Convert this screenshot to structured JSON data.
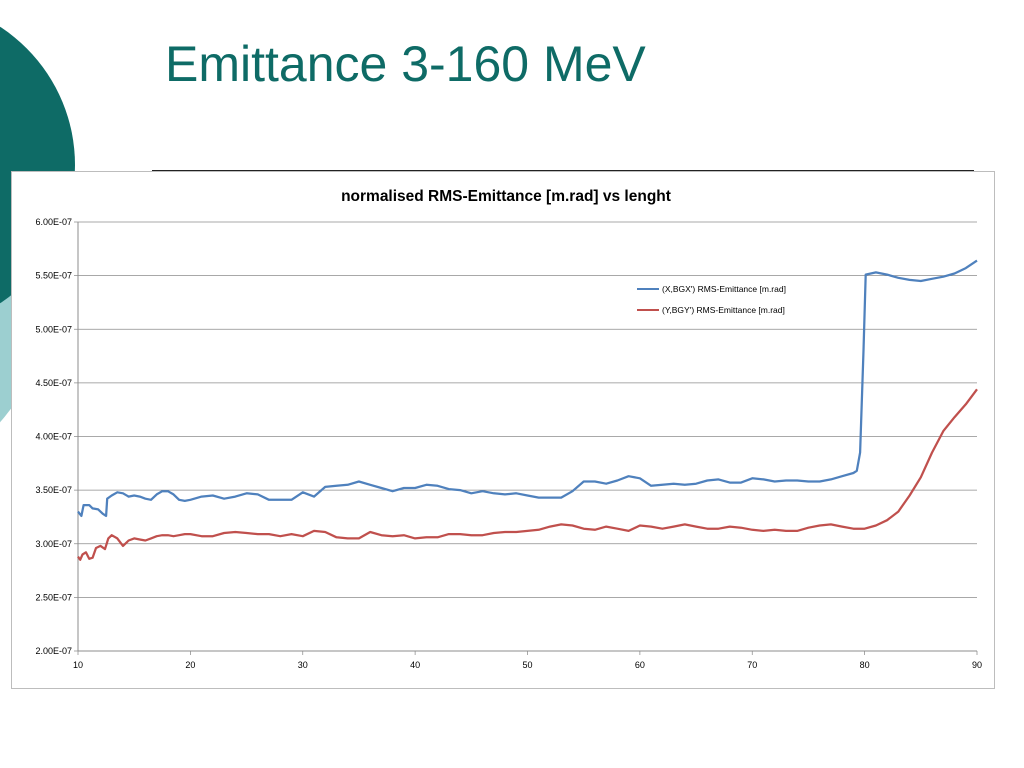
{
  "slide": {
    "title": "Emittance 3-160 MeV",
    "title_color": "#0e6b66",
    "accent_dark": "#0e6b66",
    "accent_light": "#9ccfd0"
  },
  "chart_data": {
    "type": "line",
    "title": "normalised  RMS-Emittance [m.rad] vs lenght",
    "xlabel": "",
    "ylabel": "",
    "xlim": [
      10,
      90
    ],
    "ylim": [
      2e-07,
      6e-07
    ],
    "x_ticks": [
      10,
      20,
      30,
      40,
      50,
      60,
      70,
      80,
      90
    ],
    "y_ticks": [
      2e-07,
      2.5e-07,
      3e-07,
      3.5e-07,
      4e-07,
      4.5e-07,
      5e-07,
      5.5e-07,
      6e-07
    ],
    "x_tick_labels": [
      "10",
      "20",
      "30",
      "40",
      "50",
      "60",
      "70",
      "80",
      "90"
    ],
    "y_tick_labels": [
      "2.00E-07",
      "2.50E-07",
      "3.00E-07",
      "3.50E-07",
      "4.00E-07",
      "4.50E-07",
      "5.00E-07",
      "5.50E-07",
      "6.00E-07"
    ],
    "grid": "horizontal",
    "legend_position": "top-right",
    "series": [
      {
        "name": "(X,BGX') RMS-Emittance  [m.rad]",
        "color": "#4f81bd",
        "x": [
          10,
          10.3,
          10.5,
          11,
          11.3,
          11.8,
          12.2,
          12.5,
          12.6,
          13,
          13.5,
          14,
          14.5,
          15,
          15.5,
          16,
          16.5,
          17,
          17.5,
          18,
          18.5,
          19,
          19.5,
          20,
          21,
          22,
          23,
          24,
          25,
          26,
          27,
          28,
          29,
          30,
          31,
          32,
          33,
          34,
          35,
          36,
          37,
          38,
          39,
          40,
          41,
          42,
          43,
          44,
          45,
          46,
          47,
          48,
          49,
          50,
          51,
          52,
          53,
          54,
          55,
          56,
          57,
          58,
          59,
          60,
          61,
          62,
          63,
          64,
          65,
          66,
          67,
          68,
          69,
          70,
          71,
          72,
          73,
          74,
          75,
          76,
          77,
          78,
          79,
          79.3,
          79.6,
          79.9,
          80.1,
          81,
          82,
          83,
          84,
          85,
          86,
          87,
          88,
          89,
          90
        ],
        "values": [
          3.3e-07,
          3.26e-07,
          3.36e-07,
          3.36e-07,
          3.33e-07,
          3.32e-07,
          3.28e-07,
          3.26e-07,
          3.42e-07,
          3.45e-07,
          3.48e-07,
          3.47e-07,
          3.44e-07,
          3.45e-07,
          3.44e-07,
          3.42e-07,
          3.41e-07,
          3.46e-07,
          3.49e-07,
          3.49e-07,
          3.46e-07,
          3.41e-07,
          3.4e-07,
          3.41e-07,
          3.44e-07,
          3.45e-07,
          3.42e-07,
          3.44e-07,
          3.47e-07,
          3.46e-07,
          3.41e-07,
          3.41e-07,
          3.41e-07,
          3.48e-07,
          3.44e-07,
          3.53e-07,
          3.54e-07,
          3.55e-07,
          3.58e-07,
          3.55e-07,
          3.52e-07,
          3.49e-07,
          3.52e-07,
          3.52e-07,
          3.55e-07,
          3.54e-07,
          3.51e-07,
          3.5e-07,
          3.47e-07,
          3.49e-07,
          3.47e-07,
          3.46e-07,
          3.47e-07,
          3.45e-07,
          3.43e-07,
          3.43e-07,
          3.43e-07,
          3.49e-07,
          3.58e-07,
          3.58e-07,
          3.56e-07,
          3.59e-07,
          3.63e-07,
          3.61e-07,
          3.54e-07,
          3.55e-07,
          3.56e-07,
          3.55e-07,
          3.56e-07,
          3.59e-07,
          3.6e-07,
          3.57e-07,
          3.57e-07,
          3.61e-07,
          3.6e-07,
          3.58e-07,
          3.59e-07,
          3.59e-07,
          3.58e-07,
          3.58e-07,
          3.6e-07,
          3.63e-07,
          3.66e-07,
          3.68e-07,
          3.85e-07,
          4.8e-07,
          5.51e-07,
          5.53e-07,
          5.51e-07,
          5.48e-07,
          5.46e-07,
          5.45e-07,
          5.47e-07,
          5.49e-07,
          5.52e-07,
          5.57e-07,
          5.64e-07
        ]
      },
      {
        "name": "(Y,BGY') RMS-Emittance  [m.rad]",
        "color": "#c0504d",
        "x": [
          10,
          10.2,
          10.4,
          10.7,
          11,
          11.3,
          11.6,
          12,
          12.4,
          12.7,
          13,
          13.5,
          14,
          14.5,
          15,
          15.5,
          16,
          16.5,
          17,
          17.5,
          18,
          18.5,
          19,
          19.5,
          20,
          21,
          22,
          23,
          24,
          25,
          26,
          27,
          28,
          29,
          30,
          31,
          32,
          33,
          34,
          35,
          36,
          37,
          38,
          39,
          40,
          41,
          42,
          43,
          44,
          45,
          46,
          47,
          48,
          49,
          50,
          51,
          52,
          53,
          54,
          55,
          56,
          57,
          58,
          59,
          60,
          61,
          62,
          63,
          64,
          65,
          66,
          67,
          68,
          69,
          70,
          71,
          72,
          73,
          74,
          75,
          76,
          77,
          78,
          79,
          80,
          81,
          82,
          83,
          84,
          85,
          86,
          87,
          88,
          89,
          90
        ],
        "values": [
          2.88e-07,
          2.85e-07,
          2.9e-07,
          2.92e-07,
          2.86e-07,
          2.87e-07,
          2.96e-07,
          2.98e-07,
          2.95e-07,
          3.05e-07,
          3.08e-07,
          3.05e-07,
          2.98e-07,
          3.03e-07,
          3.05e-07,
          3.04e-07,
          3.03e-07,
          3.05e-07,
          3.07e-07,
          3.08e-07,
          3.08e-07,
          3.07e-07,
          3.08e-07,
          3.09e-07,
          3.09e-07,
          3.07e-07,
          3.07e-07,
          3.1e-07,
          3.11e-07,
          3.1e-07,
          3.09e-07,
          3.09e-07,
          3.07e-07,
          3.09e-07,
          3.07e-07,
          3.12e-07,
          3.11e-07,
          3.06e-07,
          3.05e-07,
          3.05e-07,
          3.11e-07,
          3.08e-07,
          3.07e-07,
          3.08e-07,
          3.05e-07,
          3.06e-07,
          3.06e-07,
          3.09e-07,
          3.09e-07,
          3.08e-07,
          3.08e-07,
          3.1e-07,
          3.11e-07,
          3.11e-07,
          3.12e-07,
          3.13e-07,
          3.16e-07,
          3.18e-07,
          3.17e-07,
          3.14e-07,
          3.13e-07,
          3.16e-07,
          3.14e-07,
          3.12e-07,
          3.17e-07,
          3.16e-07,
          3.14e-07,
          3.16e-07,
          3.18e-07,
          3.16e-07,
          3.14e-07,
          3.14e-07,
          3.16e-07,
          3.15e-07,
          3.13e-07,
          3.12e-07,
          3.13e-07,
          3.12e-07,
          3.12e-07,
          3.15e-07,
          3.17e-07,
          3.18e-07,
          3.16e-07,
          3.14e-07,
          3.14e-07,
          3.17e-07,
          3.22e-07,
          3.3e-07,
          3.45e-07,
          3.62e-07,
          3.85e-07,
          4.05e-07,
          4.18e-07,
          4.3e-07,
          4.44e-07
        ]
      }
    ]
  }
}
